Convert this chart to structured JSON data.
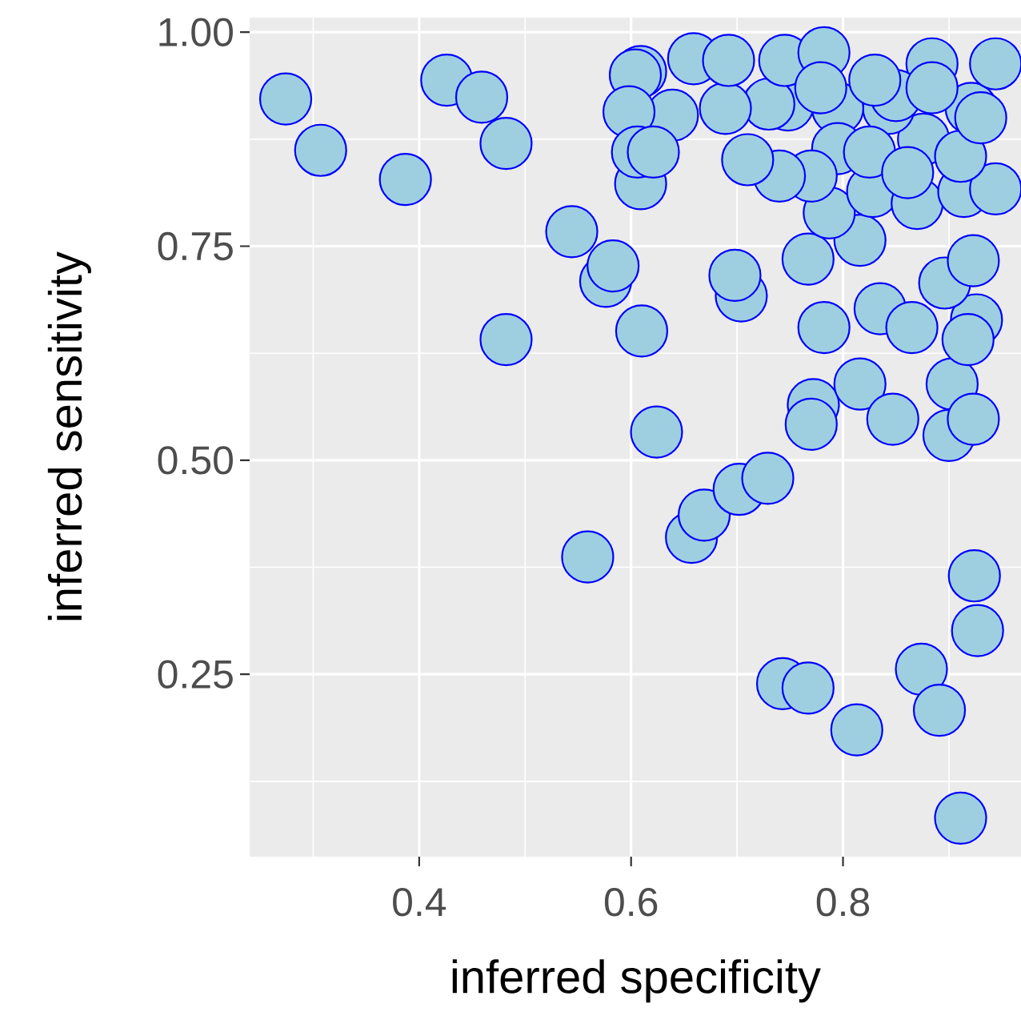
{
  "chart_data": {
    "type": "scatter",
    "xlabel": "inferred specificity",
    "ylabel": "inferred sensitivity",
    "xlim": [
      0.24,
      0.968
    ],
    "ylim": [
      0.037,
      1.017
    ],
    "xticks": [
      0.4,
      0.6,
      0.8
    ],
    "yticks": [
      {
        "value": 0.25,
        "label": "0.25"
      },
      {
        "value": 0.5,
        "label": "0.50"
      },
      {
        "value": 0.75,
        "label": "0.75"
      },
      {
        "value": 1.0,
        "label": "1.00"
      }
    ],
    "grid": true,
    "marker": "circle",
    "series": [
      {
        "color": "#9ecfe0",
        "x": [
          0.274,
          0.307,
          0.387,
          0.426,
          0.459,
          0.482,
          0.482,
          0.544,
          0.576,
          0.583,
          0.559,
          0.657,
          0.669,
          0.702,
          0.729,
          0.924,
          0.927,
          0.874,
          0.891,
          0.743,
          0.767,
          0.813,
          0.911,
          0.624,
          0.61,
          0.704,
          0.698,
          0.782,
          0.835,
          0.865,
          0.772,
          0.77,
          0.816,
          0.847,
          0.903,
          0.9,
          0.923,
          0.926,
          0.918,
          0.896,
          0.923,
          0.767,
          0.816,
          0.787,
          0.828,
          0.87,
          0.914,
          0.944,
          0.876,
          0.911,
          0.921,
          0.944,
          0.884,
          0.843,
          0.795,
          0.748,
          0.73,
          0.689,
          0.639,
          0.659,
          0.692,
          0.745,
          0.782,
          0.779,
          0.795,
          0.77,
          0.825,
          0.861,
          0.85,
          0.74,
          0.71,
          0.83,
          0.884,
          0.93,
          0.609,
          0.609,
          0.604,
          0.598,
          0.606,
          0.621
        ],
        "values": [
          0.922,
          0.862,
          0.828,
          0.944,
          0.924,
          0.87,
          0.641,
          0.767,
          0.709,
          0.727,
          0.387,
          0.41,
          0.436,
          0.466,
          0.479,
          0.365,
          0.301,
          0.256,
          0.208,
          0.239,
          0.234,
          0.185,
          0.082,
          0.533,
          0.651,
          0.692,
          0.716,
          0.655,
          0.677,
          0.655,
          0.565,
          0.542,
          0.589,
          0.548,
          0.589,
          0.529,
          0.548,
          0.664,
          0.641,
          0.707,
          0.733,
          0.735,
          0.757,
          0.789,
          0.814,
          0.8,
          0.814,
          0.817,
          0.875,
          0.855,
          0.911,
          0.963,
          0.963,
          0.911,
          0.911,
          0.915,
          0.916,
          0.911,
          0.903,
          0.969,
          0.967,
          0.967,
          0.976,
          0.935,
          0.864,
          0.832,
          0.86,
          0.836,
          0.926,
          0.832,
          0.851,
          0.944,
          0.935,
          0.9,
          0.954,
          0.823,
          0.95,
          0.907,
          0.86,
          0.86
        ]
      }
    ]
  }
}
